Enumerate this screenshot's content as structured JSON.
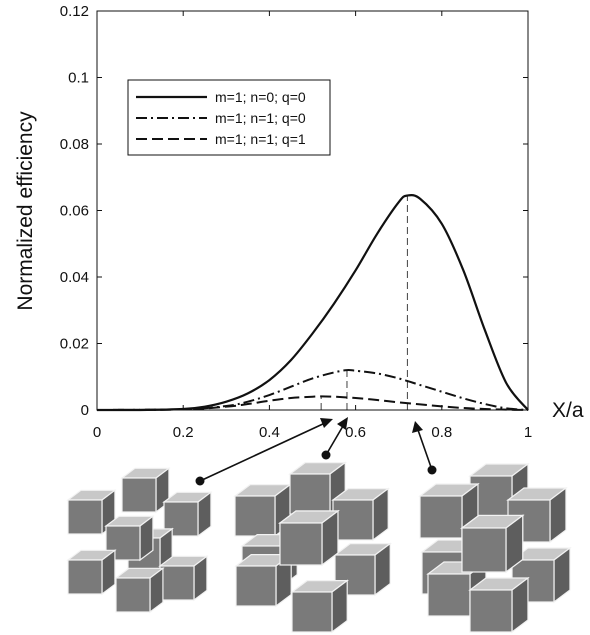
{
  "chart_data": {
    "type": "line",
    "title": "",
    "xlabel": "X/a",
    "ylabel": "Normalized efficiency",
    "xlim": [
      0,
      1
    ],
    "ylim": [
      0,
      0.12
    ],
    "xticks": [
      "0",
      "0.2",
      "0.4",
      "0.6",
      "0.8",
      "1"
    ],
    "yticks": [
      "0",
      "0.02",
      "0.04",
      "0.06",
      "0.08",
      "0.1",
      "0.12"
    ],
    "grid": false,
    "legend_position": "top-left",
    "series": [
      {
        "name": "m=1; n=0; q=0",
        "style": "solid",
        "peak_x": 0.72,
        "x": [
          0,
          0.1,
          0.2,
          0.25,
          0.3,
          0.35,
          0.4,
          0.45,
          0.5,
          0.55,
          0.6,
          0.65,
          0.7,
          0.72,
          0.75,
          0.8,
          0.85,
          0.9,
          0.95,
          1.0
        ],
        "values": [
          0,
          0,
          0.0003,
          0.001,
          0.0025,
          0.005,
          0.009,
          0.015,
          0.023,
          0.032,
          0.042,
          0.053,
          0.0625,
          0.0645,
          0.0635,
          0.056,
          0.042,
          0.024,
          0.008,
          0
        ]
      },
      {
        "name": "m=1; n=1; q=0",
        "style": "dashdot",
        "peak_x": 0.58,
        "x": [
          0,
          0.2,
          0.3,
          0.35,
          0.4,
          0.45,
          0.5,
          0.55,
          0.58,
          0.6,
          0.65,
          0.7,
          0.75,
          0.8,
          0.85,
          0.9,
          0.95,
          1.0
        ],
        "values": [
          0,
          0.0002,
          0.0012,
          0.0025,
          0.0045,
          0.007,
          0.0095,
          0.0113,
          0.012,
          0.0118,
          0.011,
          0.0095,
          0.0075,
          0.0055,
          0.0035,
          0.0018,
          0.0005,
          0
        ]
      },
      {
        "name": "m=1; n=1; q=1",
        "style": "dashed",
        "peak_x": 0.52,
        "x": [
          0,
          0.2,
          0.3,
          0.35,
          0.4,
          0.45,
          0.5,
          0.52,
          0.55,
          0.6,
          0.65,
          0.7,
          0.75,
          0.8,
          0.85,
          0.9,
          0.95,
          1.0
        ],
        "values": [
          0,
          0.0002,
          0.001,
          0.0018,
          0.0028,
          0.0036,
          0.004,
          0.0041,
          0.004,
          0.0036,
          0.003,
          0.0023,
          0.0017,
          0.0011,
          0.0006,
          0.0003,
          0.0001,
          0
        ]
      }
    ],
    "illustrations": [
      {
        "name": "sparse-cube-cluster",
        "arrow_target_x": 0.52
      },
      {
        "name": "medium-cube-cluster",
        "arrow_target_x": 0.58
      },
      {
        "name": "dense-cube-cluster",
        "arrow_target_x": 0.72
      }
    ],
    "colors": {
      "line": "#111111",
      "cube_front": "#7a7a7a",
      "cube_top": "#c8c8c8",
      "cube_side": "#5e5e5e",
      "cube_edge": "#f2f2f2"
    }
  }
}
